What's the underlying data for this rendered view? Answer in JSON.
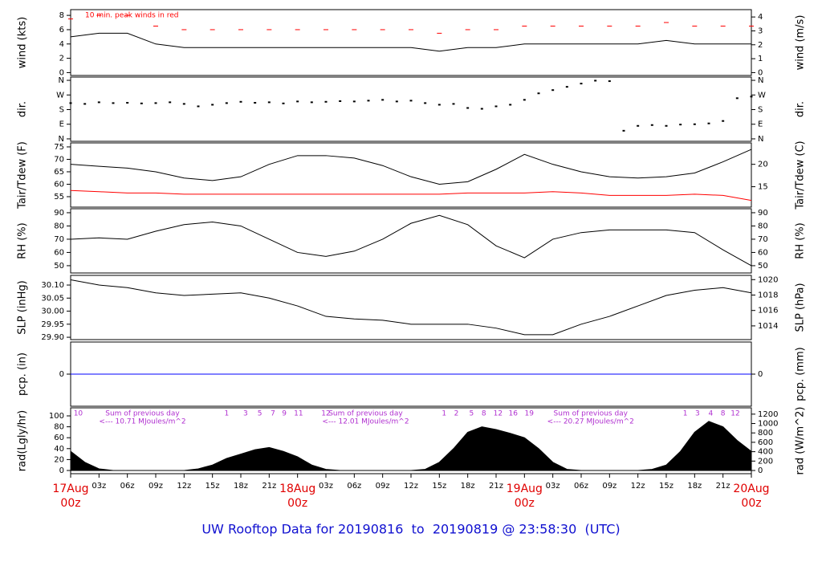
{
  "title": "UW Rooftop Data for 20190816  to  20190819 @ 23:58:30  (UTC)",
  "chart_data": [
    {
      "type": "line",
      "ylabel": "wind (kts)",
      "y2label": "wind (m/s)",
      "annotation": "10 min. peak winds in red",
      "xlim": [
        0,
        72
      ],
      "ylim": [
        -0.4,
        8.8
      ],
      "yticks": [
        0,
        2,
        4,
        6,
        8
      ],
      "y2lim": [
        -0.206,
        4.527
      ],
      "y2ticks": [
        0,
        1,
        2,
        3,
        4
      ],
      "x": [
        0,
        3,
        6,
        9,
        12,
        15,
        18,
        21,
        24,
        27,
        30,
        33,
        36,
        39,
        42,
        45,
        48,
        51,
        54,
        57,
        60,
        63,
        66,
        69,
        72
      ],
      "series": [
        {
          "color": "#000000",
          "style": "line",
          "values": [
            5,
            5.5,
            5.5,
            4,
            3.5,
            3.5,
            3.5,
            3.5,
            3.5,
            3.5,
            3.5,
            3.5,
            3.5,
            3,
            3.5,
            3.5,
            4,
            4,
            4,
            4,
            4,
            4.5,
            4,
            4,
            4
          ]
        },
        {
          "color": "#ff0000",
          "style": "dash",
          "values": [
            7.5,
            8,
            8,
            6.5,
            6,
            6,
            6,
            6,
            6,
            6,
            6,
            6,
            6,
            5.5,
            6,
            6,
            6.5,
            6.5,
            6.5,
            6.5,
            6.5,
            7,
            6.5,
            6.5,
            6.5
          ]
        }
      ]
    },
    {
      "type": "scatter",
      "ylabel": "dir.",
      "y2label": "dir.",
      "xlim": [
        0,
        72
      ],
      "ylim": [
        -15,
        380
      ],
      "yticks": [
        {
          "value": 0,
          "label": "N"
        },
        {
          "value": 90,
          "label": "E"
        },
        {
          "value": 180,
          "label": "S"
        },
        {
          "value": 270,
          "label": "W"
        },
        {
          "value": 360,
          "label": "N"
        }
      ],
      "y2lim": [
        -15,
        380
      ],
      "y2ticks": [
        {
          "value": 0,
          "label": "N"
        },
        {
          "value": 90,
          "label": "E"
        },
        {
          "value": 180,
          "label": "S"
        },
        {
          "value": 270,
          "label": "W"
        },
        {
          "value": 360,
          "label": "N"
        }
      ],
      "x": [
        0,
        1.5,
        3,
        4.5,
        6,
        7.5,
        9,
        10.5,
        12,
        13.5,
        15,
        16.5,
        18,
        19.5,
        21,
        22.5,
        24,
        25.5,
        27,
        28.5,
        30,
        31.5,
        33,
        34.5,
        36,
        37.5,
        39,
        40.5,
        42,
        43.5,
        45,
        46.5,
        48,
        49.5,
        51,
        52.5,
        54,
        55.5,
        57,
        58.5,
        60,
        61.5,
        63,
        64.5,
        66,
        67.5,
        69,
        70.5,
        72
      ],
      "series": [
        {
          "color": "#000000",
          "values": [
            220,
            215,
            225,
            220,
            222,
            218,
            220,
            225,
            215,
            200,
            210,
            220,
            228,
            222,
            225,
            218,
            230,
            225,
            228,
            232,
            230,
            235,
            240,
            230,
            235,
            220,
            210,
            215,
            190,
            185,
            200,
            210,
            240,
            280,
            300,
            320,
            340,
            358,
            355,
            50,
            80,
            85,
            80,
            88,
            90,
            95,
            110,
            250,
            260
          ]
        }
      ]
    },
    {
      "type": "line",
      "ylabel": "Tair/Tdew (F)",
      "y2label": "Tair/Tdew (C)",
      "xlim": [
        0,
        72
      ],
      "ylim": [
        50.8,
        76.6
      ],
      "yticks": [
        55,
        60,
        65,
        70,
        75
      ],
      "y2lim": [
        10.44,
        24.78
      ],
      "y2ticks": [
        15,
        20
      ],
      "x": [
        0,
        3,
        6,
        9,
        12,
        15,
        18,
        21,
        24,
        27,
        30,
        33,
        36,
        39,
        42,
        45,
        48,
        51,
        54,
        57,
        60,
        63,
        66,
        69,
        72
      ],
      "series": [
        {
          "color": "#000000",
          "style": "line",
          "values": [
            68,
            67.2,
            66.5,
            65,
            62.5,
            61.5,
            63,
            68,
            71.5,
            71.5,
            70.5,
            67.5,
            63,
            60,
            61,
            66,
            72,
            68,
            65,
            63,
            62.5,
            63,
            64.5,
            69,
            74
          ]
        },
        {
          "color": "#ff0000",
          "style": "line",
          "values": [
            57.5,
            57,
            56.5,
            56.5,
            56,
            56,
            56,
            56,
            56,
            56,
            56,
            56,
            56,
            56,
            56.5,
            56.5,
            56.5,
            57,
            56.5,
            55.5,
            55.5,
            55.5,
            56,
            55.5,
            53.5
          ]
        }
      ]
    },
    {
      "type": "line",
      "ylabel": "RH (%)",
      "y2label": "RH (%)",
      "xlim": [
        0,
        72
      ],
      "ylim": [
        44.5,
        93
      ],
      "yticks": [
        50,
        60,
        70,
        80,
        90
      ],
      "y2lim": [
        44.5,
        93
      ],
      "y2ticks": [
        50,
        60,
        70,
        80,
        90
      ],
      "x": [
        0,
        3,
        6,
        9,
        12,
        15,
        18,
        21,
        24,
        27,
        30,
        33,
        36,
        39,
        42,
        45,
        48,
        51,
        54,
        57,
        60,
        63,
        66,
        69,
        72
      ],
      "series": [
        {
          "color": "#000000",
          "style": "line",
          "values": [
            70,
            71,
            70,
            76,
            81,
            83,
            80,
            70,
            60,
            57,
            61,
            70,
            82,
            88,
            81,
            65,
            56,
            70,
            75,
            77,
            77,
            77,
            75,
            62,
            50
          ]
        }
      ]
    },
    {
      "type": "line",
      "ylabel": "SLP (inHg)",
      "y2label": "SLP (hPa)",
      "xlim": [
        0,
        72
      ],
      "ylim": [
        29.891,
        30.137
      ],
      "yticks": [
        {
          "value": 29.9,
          "label": "29.90"
        },
        {
          "value": 29.95,
          "label": "29.95"
        },
        {
          "value": 30,
          "label": "30.00"
        },
        {
          "value": 30.05,
          "label": "30.05"
        },
        {
          "value": 30.1,
          "label": "30.10"
        }
      ],
      "y2lim": [
        1012.22,
        1020.55
      ],
      "y2ticks": [
        1014,
        1016,
        1018,
        1020
      ],
      "x": [
        0,
        3,
        6,
        9,
        12,
        15,
        18,
        21,
        24,
        27,
        30,
        33,
        36,
        39,
        42,
        45,
        48,
        51,
        54,
        57,
        60,
        63,
        66,
        69,
        72
      ],
      "series": [
        {
          "color": "#000000",
          "style": "line",
          "values": [
            30.12,
            30.1,
            30.09,
            30.07,
            30.06,
            30.065,
            30.07,
            30.05,
            30.02,
            29.98,
            29.97,
            29.965,
            29.95,
            29.95,
            29.95,
            29.935,
            29.91,
            29.91,
            29.95,
            29.98,
            30.02,
            30.06,
            30.08,
            30.09,
            30.07
          ]
        }
      ]
    },
    {
      "type": "line",
      "ylabel": "pcp. (in)",
      "y2label": "pcp. (mm)",
      "xlim": [
        0,
        72
      ],
      "ylim": [
        -1,
        1
      ],
      "yticks": [
        0
      ],
      "y2lim": [
        -25.4,
        25.4
      ],
      "y2ticks": [
        0
      ],
      "x": [
        0,
        3,
        6,
        9,
        12,
        15,
        18,
        21,
        24,
        27,
        30,
        33,
        36,
        39,
        42,
        45,
        48,
        51,
        54,
        57,
        60,
        63,
        66,
        69,
        72
      ],
      "series": [
        {
          "color": "#0000ff",
          "style": "line",
          "values": [
            0,
            0,
            0,
            0,
            0,
            0,
            0,
            0,
            0,
            0,
            0,
            0,
            0,
            0,
            0,
            0,
            0,
            0,
            0,
            0,
            0,
            0,
            0,
            0,
            0
          ]
        }
      ]
    },
    {
      "type": "area",
      "ylabel": "rad(Lgly/hr)",
      "y2label": "rad (W/m^2)",
      "xlim": [
        0,
        72
      ],
      "ylim": [
        -5.9,
        114.7
      ],
      "yticks": [
        0,
        20,
        40,
        60,
        80,
        100
      ],
      "y2lim": [
        -68.6,
        1334
      ],
      "y2ticks": [
        0,
        200,
        400,
        600,
        800,
        1000,
        1200
      ],
      "x": [
        0,
        1.5,
        3,
        4.5,
        6,
        9,
        12,
        13.5,
        15,
        16.5,
        18,
        19.5,
        21,
        22.5,
        24,
        25.5,
        27,
        28.5,
        30,
        36,
        37.5,
        39,
        40.5,
        42,
        43.5,
        45,
        46.5,
        48,
        49.5,
        51,
        52.5,
        54,
        60,
        61.5,
        63,
        64.5,
        66,
        67.5,
        69,
        70.5,
        72
      ],
      "series": [
        {
          "color": "#000000",
          "values": [
            35,
            15,
            3,
            0,
            0,
            0,
            0,
            3,
            10,
            22,
            30,
            38,
            42,
            35,
            25,
            10,
            2,
            0,
            0,
            0,
            2,
            15,
            40,
            70,
            80,
            75,
            68,
            60,
            40,
            15,
            2,
            0,
            0,
            2,
            10,
            35,
            70,
            90,
            80,
            55,
            35
          ]
        }
      ],
      "hour_labels": [
        {
          "text": "10",
          "x": 0.8
        },
        {
          "text": "1",
          "x": 16.5
        },
        {
          "text": "3",
          "x": 18.5
        },
        {
          "text": "5",
          "x": 20
        },
        {
          "text": "7",
          "x": 21.4
        },
        {
          "text": "9",
          "x": 22.6
        },
        {
          "text": "11",
          "x": 24.1
        },
        {
          "text": "12",
          "x": 27
        },
        {
          "text": "1",
          "x": 39.5
        },
        {
          "text": "2",
          "x": 40.8
        },
        {
          "text": "5",
          "x": 42.4
        },
        {
          "text": "8",
          "x": 43.7
        },
        {
          "text": "12",
          "x": 45.2
        },
        {
          "text": "16",
          "x": 46.8
        },
        {
          "text": "19",
          "x": 48.5
        },
        {
          "text": "1",
          "x": 65
        },
        {
          "text": "3",
          "x": 66.3
        },
        {
          "text": "4",
          "x": 67.7
        },
        {
          "text": "8",
          "x": 69
        },
        {
          "text": "12",
          "x": 70.3
        }
      ],
      "sums": [
        {
          "x": 7.6,
          "lines": [
            "Sum of previous day",
            "<--- 10.71 MJoules/m^2"
          ]
        },
        {
          "x": 31.2,
          "lines": [
            "Sum of previous day",
            "<--- 12.01 MJoules/m^2"
          ]
        },
        {
          "x": 55,
          "lines": [
            "Sum of previous day",
            "<--- 20.27 MJoules/m^2"
          ]
        }
      ],
      "xticks": [
        {
          "value": 0,
          "label": "17Aug",
          "sublabel": "00z"
        },
        {
          "value": 3,
          "label": "03z"
        },
        {
          "value": 6,
          "label": "06z"
        },
        {
          "value": 9,
          "label": "09z"
        },
        {
          "value": 12,
          "label": "12z"
        },
        {
          "value": 15,
          "label": "15z"
        },
        {
          "value": 18,
          "label": "18z"
        },
        {
          "value": 21,
          "label": "21z"
        },
        {
          "value": 24,
          "label": "18Aug",
          "sublabel": "00z"
        },
        {
          "value": 27,
          "label": "03z"
        },
        {
          "value": 30,
          "label": "06z"
        },
        {
          "value": 33,
          "label": "09z"
        },
        {
          "value": 36,
          "label": "12z"
        },
        {
          "value": 39,
          "label": "15z"
        },
        {
          "value": 42,
          "label": "18z"
        },
        {
          "value": 45,
          "label": "21z"
        },
        {
          "value": 48,
          "label": "19Aug",
          "sublabel": "00z"
        },
        {
          "value": 51,
          "label": "03z"
        },
        {
          "value": 54,
          "label": "06z"
        },
        {
          "value": 57,
          "label": "09z"
        },
        {
          "value": 60,
          "label": "12z"
        },
        {
          "value": 63,
          "label": "15z"
        },
        {
          "value": 66,
          "label": "18z"
        },
        {
          "value": 69,
          "label": "21z"
        },
        {
          "value": 72,
          "label": "20Aug",
          "sublabel": "00z"
        }
      ]
    }
  ]
}
